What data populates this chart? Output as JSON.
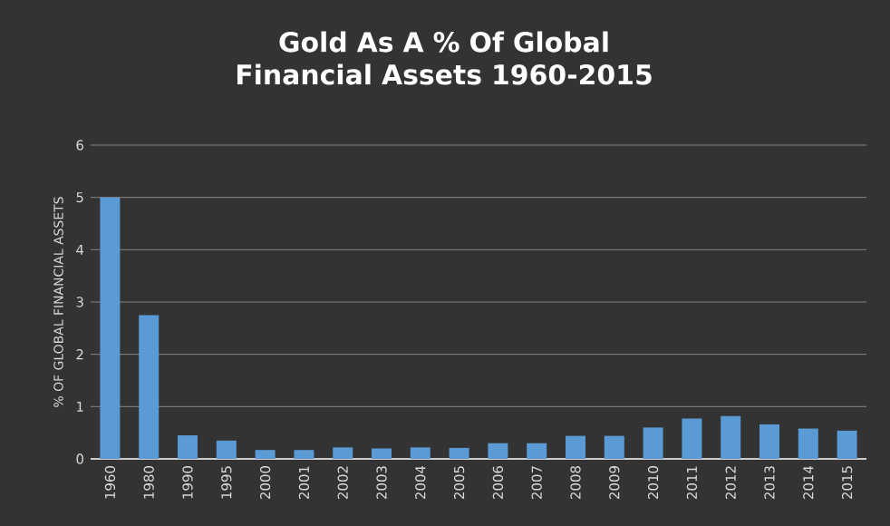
{
  "chart_data": {
    "type": "bar",
    "title": "Gold As A % Of Global Financial Assets 1960-2015",
    "ylabel": "% OF GLOBAL FINANCIAL ASSETS",
    "categories": [
      "1960",
      "1980",
      "1990",
      "1995",
      "2000",
      "2001",
      "2002",
      "2003",
      "2004",
      "2005",
      "2006",
      "2007",
      "2008",
      "2009",
      "2010",
      "2011",
      "2012",
      "2013",
      "2014",
      "2015"
    ],
    "values": [
      5.0,
      2.75,
      0.45,
      0.35,
      0.17,
      0.17,
      0.22,
      0.2,
      0.22,
      0.21,
      0.3,
      0.3,
      0.44,
      0.44,
      0.6,
      0.77,
      0.82,
      0.66,
      0.58,
      0.54
    ],
    "color": "#5b9bd5",
    "ylim": [
      0,
      6
    ],
    "yticks": [
      0,
      1,
      2,
      3,
      4,
      5,
      6
    ],
    "grid": "y"
  }
}
